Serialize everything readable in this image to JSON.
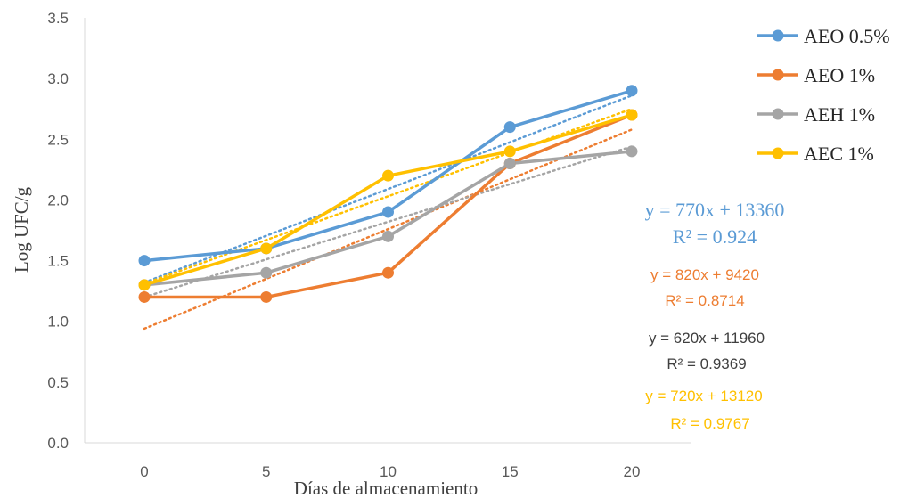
{
  "chart_data": {
    "type": "line",
    "title": "",
    "xlabel": "Días de almacenamiento",
    "ylabel": "Log UFC/g",
    "categories": [
      "0",
      "5",
      "10",
      "15",
      "20"
    ],
    "x": [
      0,
      5,
      10,
      15,
      20
    ],
    "ylim": [
      0,
      3.5
    ],
    "yticks": [
      "0.0",
      "0.5",
      "1.0",
      "1.5",
      "2.0",
      "2.5",
      "3.0",
      "3.5"
    ],
    "grid": false,
    "legend_position": "right",
    "series": [
      {
        "name": "AEO 0.5%",
        "color": "#5B9BD5",
        "values": [
          1.5,
          1.6,
          1.9,
          2.6,
          2.9
        ],
        "trendline": {
          "start": 1.32,
          "end": 2.86
        },
        "equation": "y = 770x + 13360",
        "r2": "R² = 0.924"
      },
      {
        "name": "AEO 1%",
        "color": "#ED7D31",
        "values": [
          1.2,
          1.2,
          1.4,
          2.3,
          2.7
        ],
        "trendline": {
          "start": 0.94,
          "end": 2.58
        },
        "equation": "y = 820x + 9420",
        "r2": "R² = 0.8714"
      },
      {
        "name": "AEH 1%",
        "color": "#A5A5A5",
        "values": [
          1.3,
          1.4,
          1.7,
          2.3,
          2.4
        ],
        "trendline": {
          "start": 1.2,
          "end": 2.44
        },
        "equation": "y = 620x + 11960",
        "r2": "R² = 0.9369"
      },
      {
        "name": "AEC 1%",
        "color": "#FFC000",
        "values": [
          1.3,
          1.6,
          2.2,
          2.4,
          2.7
        ],
        "trendline": {
          "start": 1.31,
          "end": 2.75
        },
        "equation": "y = 720x + 13120",
        "r2": "R² = 0.9767"
      }
    ]
  }
}
